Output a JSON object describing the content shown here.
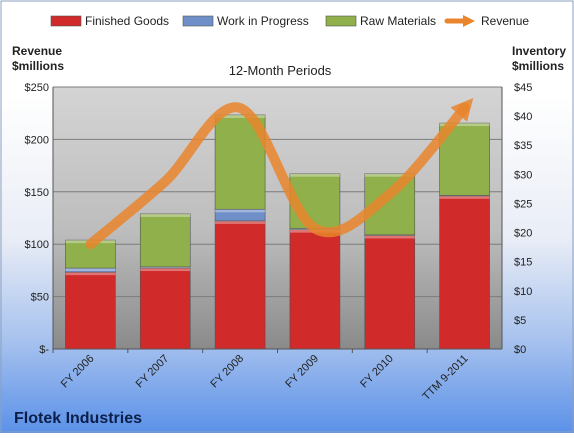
{
  "chart_data": {
    "type": "bar",
    "title": "12-Month Periods",
    "company": "Flotek Industries",
    "y_left_label": [
      "Revenue",
      "$millions"
    ],
    "y_right_label": [
      "Inventory",
      "$millions"
    ],
    "categories": [
      "FY 2006",
      "FY 2007",
      "FY 2008",
      "FY 2009",
      "FY 2010",
      "TTM 9-2011"
    ],
    "y_left_ticks": [
      "$-",
      "$50",
      "$100",
      "$150",
      "$200",
      "$250"
    ],
    "y_right_ticks": [
      "$0",
      "$5",
      "$10",
      "$15",
      "$20",
      "$25",
      "$30",
      "$35",
      "$40",
      "$45"
    ],
    "y_left_range": [
      0,
      250
    ],
    "y_right_range": [
      0,
      45
    ],
    "grid": true,
    "legend_position": "top",
    "series": [
      {
        "name": "Finished Goods",
        "kind": "bar-stacked",
        "axis": "right",
        "color": "#d02a2a",
        "values": [
          13.2,
          13.9,
          22.0,
          20.5,
          19.5,
          26.3
        ]
      },
      {
        "name": "Work in Progress",
        "kind": "bar-stacked",
        "axis": "right",
        "color": "#6e8fc8",
        "values": [
          0.7,
          0.2,
          2.0,
          0.2,
          0.1,
          0.1
        ]
      },
      {
        "name": "Raw Materials",
        "kind": "bar-stacked",
        "axis": "right",
        "color": "#8fb04a",
        "values": [
          4.8,
          9.1,
          16.2,
          9.4,
          10.5,
          12.4
        ]
      },
      {
        "name": "Revenue",
        "kind": "line",
        "axis": "left",
        "color": "#e9852c",
        "values": [
          100,
          160,
          230,
          115,
          148,
          230
        ]
      }
    ]
  }
}
